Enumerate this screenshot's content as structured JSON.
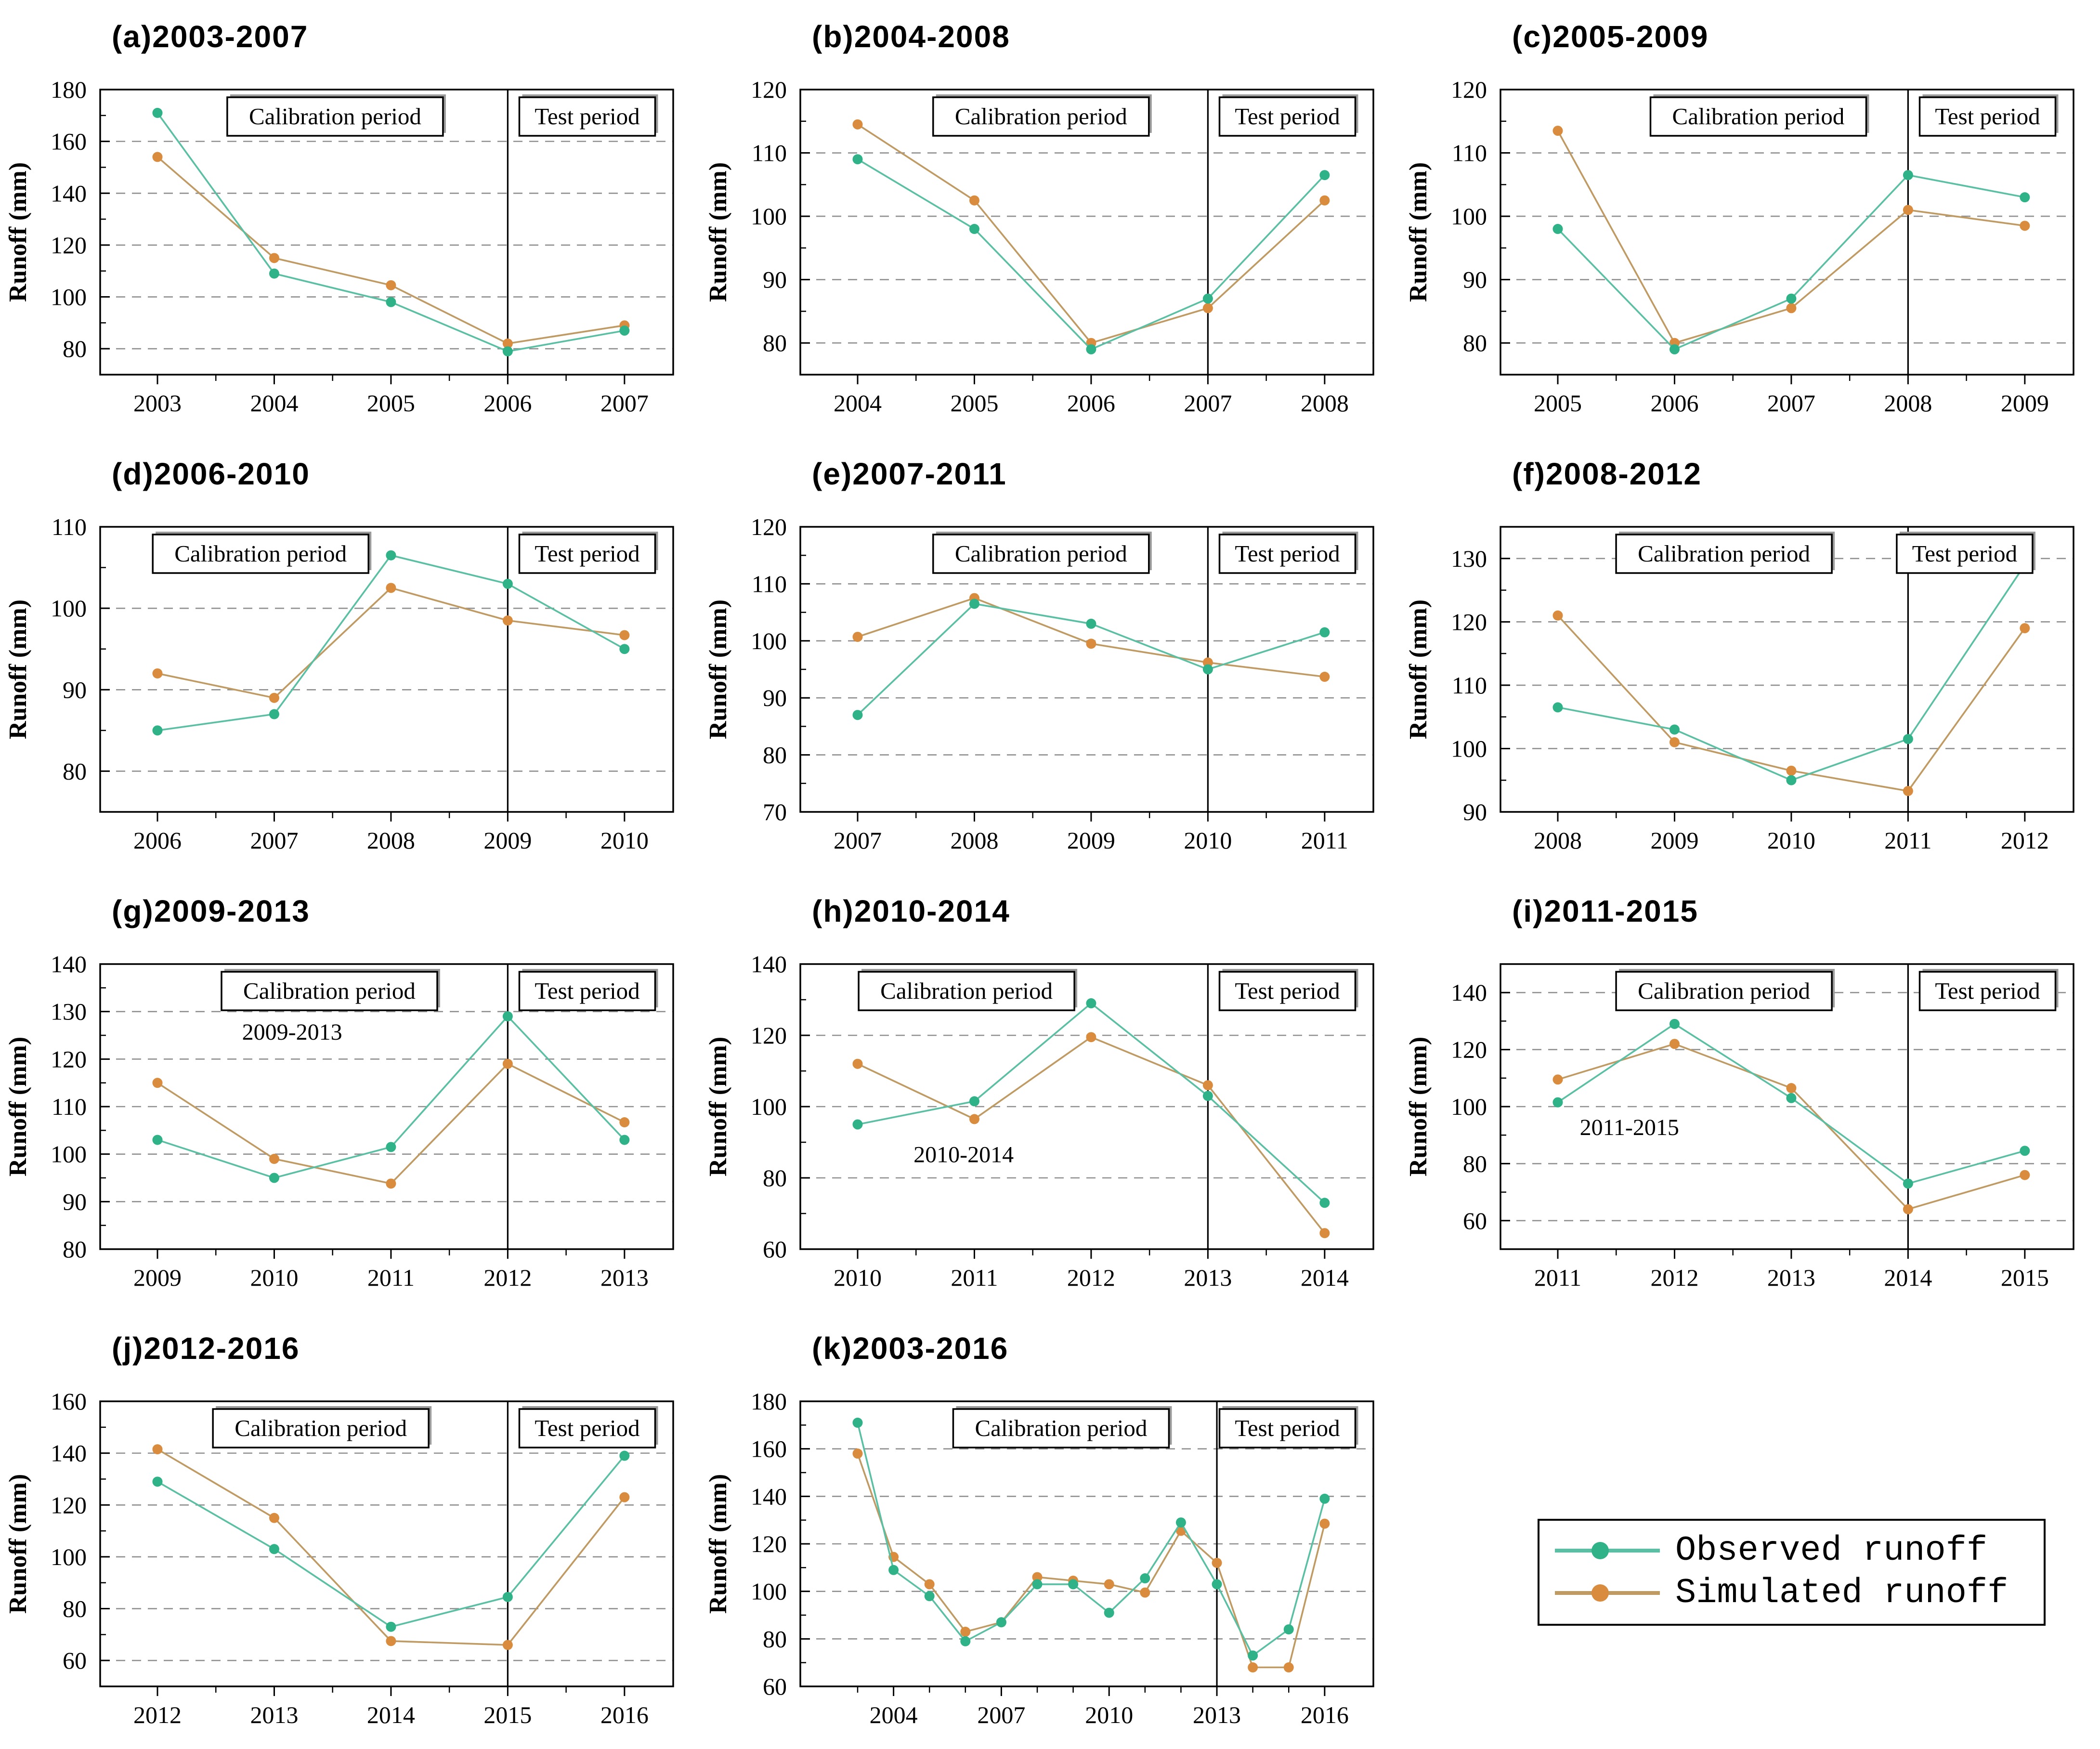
{
  "labels": {
    "calibration_label": "Calibration period",
    "test_label": "Test period",
    "y_axis_label": "Runoff (mm)"
  },
  "colors": {
    "observed_marker": "#2fb287",
    "observed_line": "#5bbfa3",
    "simulated_marker": "#d98c3e",
    "simulated_line": "#c09a63",
    "grid": "#909090",
    "axis": "#000000",
    "background": "#ffffff"
  },
  "legend": {
    "items": [
      {
        "label": "Observed runoff",
        "series": "observed"
      },
      {
        "label": "Simulated runoff",
        "series": "simulated"
      }
    ]
  },
  "chart_data": {
    "type": "line",
    "note": "Each panel: observed vs simulated annual runoff (mm); vertical line splits calibration and test periods.",
    "panels": "see charts array"
  },
  "charts": [
    {
      "id": "a",
      "title": "(a)2003-2007",
      "years": [
        2003,
        2004,
        2005,
        2006,
        2007
      ],
      "observed": [
        171,
        109,
        98,
        79,
        87
      ],
      "simulated": [
        154,
        115,
        104.5,
        82,
        89
      ],
      "ylim": [
        70,
        180
      ],
      "yticks": [
        80,
        100,
        120,
        140,
        160,
        180
      ],
      "divider_year": 2006,
      "calib_fx": 0.41
    },
    {
      "id": "b",
      "title": "(b)2004-2008",
      "years": [
        2004,
        2005,
        2006,
        2007,
        2008
      ],
      "observed": [
        109,
        98,
        79,
        87,
        106.5
      ],
      "simulated": [
        114.5,
        102.5,
        80,
        85.5,
        102.5
      ],
      "ylim": [
        75,
        120
      ],
      "yticks": [
        80,
        90,
        100,
        110,
        120
      ],
      "divider_year": 2007,
      "calib_fx": 0.42
    },
    {
      "id": "c",
      "title": "(c)2005-2009",
      "years": [
        2005,
        2006,
        2007,
        2008,
        2009
      ],
      "observed": [
        98,
        79,
        87,
        106.5,
        103
      ],
      "simulated": [
        113.5,
        80,
        85.5,
        101,
        98.5
      ],
      "ylim": [
        75,
        120
      ],
      "yticks": [
        80,
        90,
        100,
        110,
        120
      ],
      "divider_year": 2008,
      "calib_fx": 0.45
    },
    {
      "id": "d",
      "title": "(d)2006-2010",
      "years": [
        2006,
        2007,
        2008,
        2009,
        2010
      ],
      "observed": [
        85,
        87,
        106.5,
        103,
        95
      ],
      "simulated": [
        92,
        89,
        102.5,
        98.5,
        96.7
      ],
      "ylim": [
        75,
        110
      ],
      "yticks": [
        80,
        90,
        100,
        110
      ],
      "divider_year": 2009,
      "calib_fx": 0.28
    },
    {
      "id": "e",
      "title": "(e)2007-2011",
      "years": [
        2007,
        2008,
        2009,
        2010,
        2011
      ],
      "observed": [
        87,
        106.5,
        103,
        95,
        101.5
      ],
      "simulated": [
        100.7,
        107.5,
        99.5,
        96.2,
        93.7
      ],
      "ylim": [
        70,
        120
      ],
      "yticks": [
        70,
        80,
        90,
        100,
        110,
        120
      ],
      "divider_year": 2010,
      "calib_fx": 0.42
    },
    {
      "id": "f",
      "title": "(f)2008-2012",
      "years": [
        2008,
        2009,
        2010,
        2011,
        2012
      ],
      "observed": [
        106.5,
        103,
        95,
        101.5,
        129
      ],
      "simulated": [
        121,
        101,
        96.5,
        93.3,
        119
      ],
      "ylim": [
        90,
        135
      ],
      "yticks": [
        90,
        100,
        110,
        120,
        130
      ],
      "divider_year": 2011,
      "calib_fx": 0.39,
      "test_fx": 0.81
    },
    {
      "id": "g",
      "title": "(g)2009-2013",
      "years": [
        2009,
        2010,
        2011,
        2012,
        2013
      ],
      "observed": [
        103,
        95,
        101.5,
        129,
        103
      ],
      "simulated": [
        115,
        99,
        93.8,
        119,
        106.7
      ],
      "ylim": [
        80,
        140
      ],
      "yticks": [
        80,
        90,
        100,
        110,
        120,
        130,
        140
      ],
      "divider_year": 2012,
      "calib_fx": 0.4,
      "annotation": {
        "text": "2009-2013",
        "fx": 0.335,
        "fy": 0.265
      }
    },
    {
      "id": "h",
      "title": "(h)2010-2014",
      "years": [
        2010,
        2011,
        2012,
        2013,
        2014
      ],
      "observed": [
        95,
        101.5,
        129,
        103,
        73
      ],
      "simulated": [
        112,
        96.5,
        119.5,
        106,
        64.5
      ],
      "ylim": [
        60,
        140
      ],
      "yticks": [
        60,
        80,
        100,
        120,
        140
      ],
      "divider_year": 2013,
      "calib_fx": 0.29,
      "annotation": {
        "text": "2010-2014",
        "fx": 0.285,
        "fy": 0.695
      }
    },
    {
      "id": "i",
      "title": "(i)2011-2015",
      "years": [
        2011,
        2012,
        2013,
        2014,
        2015
      ],
      "observed": [
        101.5,
        129,
        103,
        73,
        84.5
      ],
      "simulated": [
        109.5,
        122,
        106.5,
        64,
        76
      ],
      "ylim": [
        50,
        150
      ],
      "yticks": [
        60,
        80,
        100,
        120,
        140
      ],
      "divider_year": 2014,
      "calib_fx": 0.39,
      "annotation": {
        "text": "2011-2015",
        "fx": 0.225,
        "fy": 0.6
      }
    },
    {
      "id": "j",
      "title": "(j)2012-2016",
      "years": [
        2012,
        2013,
        2014,
        2015,
        2016
      ],
      "observed": [
        129,
        103,
        73,
        84.5,
        139
      ],
      "simulated": [
        141.5,
        115,
        67.5,
        66,
        123
      ],
      "ylim": [
        50,
        160
      ],
      "yticks": [
        60,
        80,
        100,
        120,
        140,
        160
      ],
      "divider_year": 2015,
      "calib_fx": 0.385
    },
    {
      "id": "k",
      "title": "(k)2003-2016",
      "years": [
        2003,
        2004,
        2005,
        2006,
        2007,
        2008,
        2009,
        2010,
        2011,
        2012,
        2013,
        2014,
        2015,
        2016
      ],
      "observed": [
        171,
        109,
        98,
        79,
        87,
        103,
        103,
        91,
        105.5,
        129,
        103,
        73,
        84,
        139
      ],
      "simulated": [
        158,
        114.5,
        103,
        83,
        87,
        106,
        104.5,
        103,
        99.5,
        125.5,
        112,
        68,
        68,
        128.5
      ],
      "ylim": [
        60,
        180
      ],
      "yticks": [
        60,
        80,
        100,
        120,
        140,
        160,
        180
      ],
      "xtick_years": [
        2004,
        2007,
        2010,
        2013,
        2016
      ],
      "divider_year": 2013,
      "calib_fx": 0.455
    }
  ]
}
